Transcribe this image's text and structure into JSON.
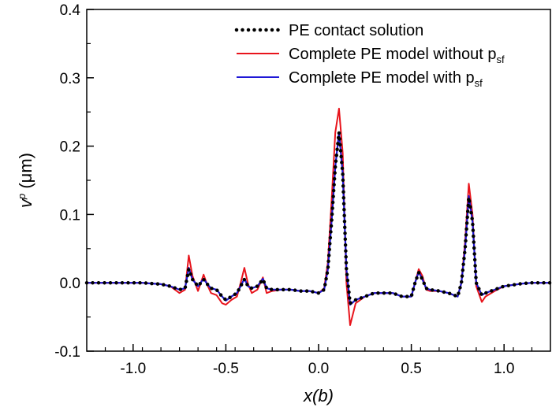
{
  "chart_data": {
    "type": "line",
    "xlabel": "x(b)",
    "ylabel": "v",
    "ylabel_sup": "p",
    "ylabel_unit": " (μm)",
    "xlim": [
      -1.25,
      1.25
    ],
    "ylim": [
      -0.1,
      0.4
    ],
    "xticks": [
      -1.0,
      -0.5,
      0.0,
      0.5,
      1.0
    ],
    "xtick_labels": [
      "-1.0",
      "-0.5",
      "0.0",
      "0.5",
      "1.0"
    ],
    "yticks": [
      -0.1,
      0.0,
      0.1,
      0.2,
      0.3,
      0.4
    ],
    "ytick_labels": [
      "-0.1",
      "0.0",
      "0.1",
      "0.2",
      "0.3",
      "0.4"
    ],
    "legend_position": "top-right",
    "grid": false,
    "series": [
      {
        "name": "PE contact solution",
        "color": "#000000",
        "style": "dotted",
        "x": [
          -1.25,
          -1.2,
          -1.15,
          -1.1,
          -1.05,
          -1.0,
          -0.95,
          -0.9,
          -0.85,
          -0.8,
          -0.75,
          -0.72,
          -0.7,
          -0.68,
          -0.65,
          -0.62,
          -0.6,
          -0.58,
          -0.55,
          -0.52,
          -0.5,
          -0.47,
          -0.44,
          -0.42,
          -0.4,
          -0.38,
          -0.36,
          -0.33,
          -0.3,
          -0.28,
          -0.25,
          -0.2,
          -0.15,
          -0.1,
          -0.05,
          0.0,
          0.03,
          0.05,
          0.07,
          0.09,
          0.11,
          0.13,
          0.15,
          0.17,
          0.2,
          0.25,
          0.3,
          0.35,
          0.4,
          0.45,
          0.5,
          0.52,
          0.54,
          0.56,
          0.58,
          0.6,
          0.65,
          0.7,
          0.75,
          0.77,
          0.79,
          0.81,
          0.83,
          0.85,
          0.88,
          0.9,
          0.95,
          1.0,
          1.05,
          1.1,
          1.15,
          1.2,
          1.25
        ],
        "y": [
          0.0,
          0.0,
          0.0,
          0.0,
          0.0,
          0.0,
          0.0,
          -0.001,
          -0.002,
          -0.005,
          -0.01,
          -0.008,
          0.02,
          0.005,
          -0.005,
          0.005,
          -0.002,
          -0.008,
          -0.01,
          -0.02,
          -0.025,
          -0.02,
          -0.015,
          -0.005,
          0.005,
          -0.005,
          -0.008,
          -0.005,
          0.005,
          -0.008,
          -0.01,
          -0.01,
          -0.01,
          -0.012,
          -0.012,
          -0.015,
          -0.01,
          0.02,
          0.09,
          0.17,
          0.22,
          0.16,
          0.02,
          -0.03,
          -0.025,
          -0.02,
          -0.015,
          -0.015,
          -0.015,
          -0.02,
          -0.02,
          0.0,
          0.015,
          0.005,
          -0.008,
          -0.01,
          -0.012,
          -0.015,
          -0.02,
          0.0,
          0.05,
          0.125,
          0.09,
          0.0,
          -0.018,
          -0.015,
          -0.01,
          -0.005,
          -0.003,
          -0.001,
          0.0,
          0.0,
          0.0
        ]
      },
      {
        "name": "Complete PE model without p",
        "name_sub": "sf",
        "color": "#e8141c",
        "style": "solid",
        "x": [
          -1.25,
          -1.2,
          -1.15,
          -1.1,
          -1.05,
          -1.0,
          -0.95,
          -0.9,
          -0.85,
          -0.8,
          -0.75,
          -0.72,
          -0.7,
          -0.68,
          -0.65,
          -0.62,
          -0.6,
          -0.58,
          -0.55,
          -0.52,
          -0.5,
          -0.47,
          -0.44,
          -0.42,
          -0.4,
          -0.38,
          -0.36,
          -0.33,
          -0.3,
          -0.28,
          -0.25,
          -0.2,
          -0.15,
          -0.1,
          -0.05,
          0.0,
          0.03,
          0.05,
          0.07,
          0.09,
          0.11,
          0.13,
          0.15,
          0.17,
          0.2,
          0.25,
          0.3,
          0.35,
          0.4,
          0.45,
          0.5,
          0.52,
          0.54,
          0.56,
          0.58,
          0.6,
          0.65,
          0.7,
          0.75,
          0.77,
          0.79,
          0.81,
          0.83,
          0.85,
          0.88,
          0.9,
          0.95,
          1.0,
          1.05,
          1.1,
          1.15,
          1.2,
          1.25
        ],
        "y": [
          0.0,
          0.0,
          0.0,
          0.0,
          0.0,
          0.0,
          0.0,
          -0.001,
          -0.002,
          -0.005,
          -0.015,
          -0.01,
          0.04,
          0.01,
          -0.012,
          0.012,
          -0.003,
          -0.015,
          -0.018,
          -0.03,
          -0.032,
          -0.025,
          -0.02,
          0.0,
          0.022,
          -0.002,
          -0.015,
          -0.01,
          0.008,
          -0.015,
          -0.012,
          -0.01,
          -0.01,
          -0.012,
          -0.012,
          -0.015,
          -0.008,
          0.03,
          0.12,
          0.22,
          0.255,
          0.19,
          0.0,
          -0.062,
          -0.03,
          -0.02,
          -0.015,
          -0.015,
          -0.015,
          -0.02,
          -0.02,
          0.0,
          0.02,
          0.01,
          -0.01,
          -0.012,
          -0.012,
          -0.015,
          -0.02,
          0.0,
          0.06,
          0.145,
          0.1,
          -0.005,
          -0.028,
          -0.02,
          -0.012,
          -0.005,
          -0.003,
          -0.001,
          0.0,
          0.0,
          0.0
        ]
      },
      {
        "name": "Complete PE model with p",
        "name_sub": "sf",
        "color": "#1f18d6",
        "style": "solid",
        "x": [
          -1.25,
          -1.2,
          -1.15,
          -1.1,
          -1.05,
          -1.0,
          -0.95,
          -0.9,
          -0.85,
          -0.8,
          -0.75,
          -0.72,
          -0.7,
          -0.68,
          -0.65,
          -0.62,
          -0.6,
          -0.58,
          -0.55,
          -0.52,
          -0.5,
          -0.47,
          -0.44,
          -0.42,
          -0.4,
          -0.38,
          -0.36,
          -0.33,
          -0.3,
          -0.28,
          -0.25,
          -0.2,
          -0.15,
          -0.1,
          -0.05,
          0.0,
          0.03,
          0.05,
          0.07,
          0.09,
          0.11,
          0.13,
          0.15,
          0.17,
          0.2,
          0.25,
          0.3,
          0.35,
          0.4,
          0.45,
          0.5,
          0.52,
          0.54,
          0.56,
          0.58,
          0.6,
          0.65,
          0.7,
          0.75,
          0.77,
          0.79,
          0.81,
          0.83,
          0.85,
          0.88,
          0.9,
          0.95,
          1.0,
          1.05,
          1.1,
          1.15,
          1.2,
          1.25
        ],
        "y": [
          0.0,
          0.0,
          0.0,
          0.0,
          0.0,
          0.0,
          0.0,
          -0.001,
          -0.002,
          -0.005,
          -0.01,
          -0.008,
          0.022,
          0.005,
          -0.005,
          0.006,
          -0.002,
          -0.008,
          -0.01,
          -0.02,
          -0.026,
          -0.02,
          -0.015,
          -0.005,
          0.006,
          -0.005,
          -0.008,
          -0.005,
          0.006,
          -0.008,
          -0.01,
          -0.01,
          -0.01,
          -0.012,
          -0.012,
          -0.015,
          -0.01,
          0.02,
          0.09,
          0.17,
          0.22,
          0.16,
          0.02,
          -0.032,
          -0.025,
          -0.02,
          -0.015,
          -0.015,
          -0.015,
          -0.02,
          -0.02,
          0.0,
          0.016,
          0.005,
          -0.008,
          -0.01,
          -0.012,
          -0.015,
          -0.02,
          0.0,
          0.05,
          0.127,
          0.09,
          0.0,
          -0.018,
          -0.015,
          -0.01,
          -0.005,
          -0.003,
          -0.001,
          0.0,
          0.0,
          0.0
        ]
      }
    ]
  }
}
